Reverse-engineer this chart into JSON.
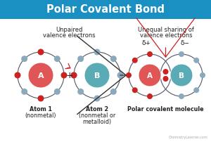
{
  "title": "Polar Covalent Bond",
  "title_bg_color": "#1a8fc1",
  "title_text_color": "#ffffff",
  "bg_color": "#ffffff",
  "left_label_line1": "Unpaired",
  "left_label_line2": "valence electrons",
  "right_label_line1": "Unequal sharing of",
  "right_label_line2": "valence electrons",
  "atom1_nucleus_color": "#e05555",
  "atom2_nucleus_color": "#5aabb5",
  "orbit_color": "#555566",
  "electron_red": "#cc2222",
  "electron_gray": "#8aaabb",
  "label_color_white": "#ffffff",
  "text_dark": "#222222",
  "arrow_dark": "#333333",
  "arrow_red": "#cc2222",
  "delta_plus": "δ+",
  "delta_minus": "δ−",
  "watermark": "ChemistryLearner.com",
  "atom1_bottom1": "Atom 1",
  "atom1_bottom2": "(nonmetal)",
  "atom2_bottom1": "Atom 2",
  "atom2_bottom2": "(nonmetal or",
  "atom2_bottom3": "metalloid)",
  "mol_bottom": "Polar covalent molecule"
}
